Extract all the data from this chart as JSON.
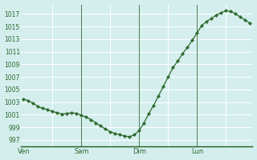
{
  "y_values": [
    1003.5,
    1003.2,
    1002.8,
    1002.3,
    1002.0,
    1001.8,
    1001.5,
    1001.3,
    1001.1,
    1001.2,
    1001.3,
    1001.2,
    1000.9,
    1000.6,
    1000.2,
    999.7,
    999.2,
    998.7,
    998.3,
    998.0,
    997.8,
    997.6,
    997.5,
    997.8,
    998.5,
    999.7,
    1001.2,
    1002.5,
    1004.0,
    1005.5,
    1007.0,
    1008.5,
    1009.5,
    1010.7,
    1011.7,
    1012.8,
    1014.0,
    1015.2,
    1015.8,
    1016.3,
    1016.8,
    1017.2,
    1017.5,
    1017.4,
    1017.0,
    1016.5,
    1016.0,
    1015.5
  ],
  "n_points": 48,
  "ven_x": 0,
  "sam_x": 12,
  "dim_x": 24,
  "lun_x": 36,
  "tick_x_labels": [
    "Ven",
    "Sam",
    "Dim",
    "Lun"
  ],
  "ytick_values": [
    997,
    999,
    1001,
    1003,
    1005,
    1007,
    1009,
    1011,
    1013,
    1015,
    1017
  ],
  "ylim": [
    996.0,
    1018.5
  ],
  "xlim": [
    -0.5,
    47.5
  ],
  "line_color": "#2d6a2d",
  "marker_color": "#2d6a2d",
  "bg_color": "#d4eeee",
  "grid_color": "#ffffff",
  "vline_color": "#336633",
  "tick_label_color": "#2d6a2d",
  "spine_color": "#2d6a2d",
  "bottom_spine_color": "#1a5c1a"
}
